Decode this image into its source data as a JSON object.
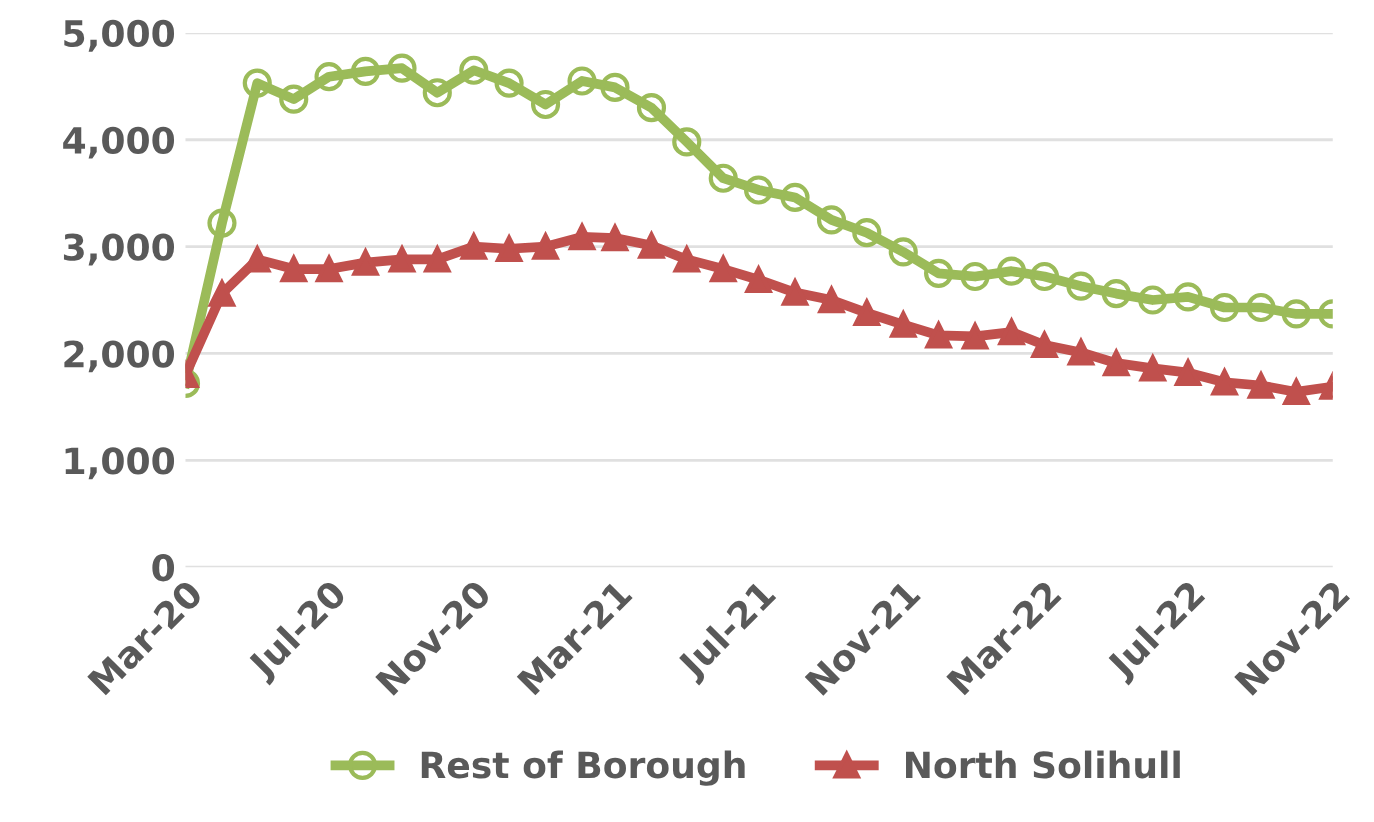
{
  "chart_data": {
    "type": "line",
    "x": [
      "2020-03",
      "2020-04",
      "2020-05",
      "2020-06",
      "2020-07",
      "2020-08",
      "2020-09",
      "2020-10",
      "2020-11",
      "2020-12",
      "2021-01",
      "2021-02",
      "2021-03",
      "2021-04",
      "2021-05",
      "2021-06",
      "2021-07",
      "2021-08",
      "2021-09",
      "2021-10",
      "2021-11",
      "2021-12",
      "2022-01",
      "2022-02",
      "2022-03",
      "2022-04",
      "2022-05",
      "2022-06",
      "2022-07",
      "2022-08",
      "2022-09",
      "2022-10",
      "2022-11"
    ],
    "series": [
      {
        "name": "Rest of Borough",
        "color": "#9bbb59",
        "marker": "circle",
        "values": [
          1720,
          3220,
          4530,
          4380,
          4590,
          4640,
          4670,
          4440,
          4650,
          4530,
          4330,
          4550,
          4490,
          4300,
          3980,
          3640,
          3530,
          3460,
          3250,
          3130,
          2950,
          2750,
          2720,
          2770,
          2720,
          2630,
          2560,
          2500,
          2530,
          2430,
          2430,
          2370,
          2370
        ]
      },
      {
        "name": "North Solihull",
        "color": "#c0504d",
        "marker": "triangle",
        "values": [
          1800,
          2560,
          2880,
          2790,
          2790,
          2850,
          2880,
          2880,
          3000,
          2980,
          3000,
          3090,
          3080,
          3010,
          2880,
          2790,
          2690,
          2570,
          2500,
          2380,
          2270,
          2170,
          2160,
          2200,
          2080,
          2010,
          1910,
          1860,
          1820,
          1730,
          1700,
          1640,
          1690
        ]
      }
    ],
    "xlim": [
      "2020-03",
      "2022-11"
    ],
    "xticks": [
      {
        "value": "2020-03",
        "label": "Mar-20"
      },
      {
        "value": "2020-07",
        "label": "Jul-20"
      },
      {
        "value": "2020-11",
        "label": "Nov-20"
      },
      {
        "value": "2021-03",
        "label": "Mar-21"
      },
      {
        "value": "2021-07",
        "label": "Jul-21"
      },
      {
        "value": "2021-11",
        "label": "Nov-21"
      },
      {
        "value": "2022-03",
        "label": "Mar-22"
      },
      {
        "value": "2022-07",
        "label": "Jul-22"
      },
      {
        "value": "2022-11",
        "label": "Nov-22"
      }
    ],
    "ylim": [
      0,
      5000
    ],
    "yticks": [
      {
        "value": 0,
        "label": "0"
      },
      {
        "value": 1000,
        "label": "1,000"
      },
      {
        "value": 2000,
        "label": "2,000"
      },
      {
        "value": 3000,
        "label": "3,000"
      },
      {
        "value": 4000,
        "label": "4,000"
      },
      {
        "value": 5000,
        "label": "5,000"
      }
    ],
    "grid": "y",
    "legend": "bottom"
  }
}
